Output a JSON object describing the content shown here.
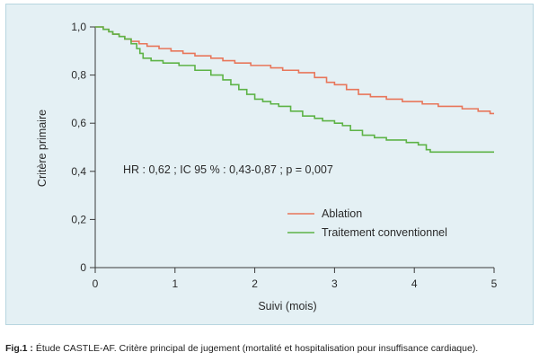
{
  "chart_data": {
    "type": "line",
    "ylabel": "Critère primaire",
    "xlabel": "Suivi (mois)",
    "xlim": [
      0,
      5
    ],
    "ylim": [
      0,
      1
    ],
    "x_ticks": [
      0,
      1,
      2,
      3,
      4,
      5
    ],
    "x_tick_labels": [
      "0",
      "1",
      "2",
      "3",
      "4",
      "5"
    ],
    "y_ticks": [
      0,
      0.2,
      0.4,
      0.6,
      0.8,
      1.0
    ],
    "y_tick_labels": [
      "0",
      "0,2",
      "0,4",
      "0,6",
      "0,8",
      "1,0"
    ],
    "annotation": "HR : 0,62 ; IC 95 % : 0,43-0,87 ; p = 0,007",
    "legend_position": "center-right",
    "grid": false,
    "series": [
      {
        "name": "Ablation",
        "color": "#e8765a",
        "x": [
          0,
          0.1,
          0.17,
          0.22,
          0.3,
          0.37,
          0.45,
          0.55,
          0.65,
          0.8,
          0.95,
          1.1,
          1.25,
          1.45,
          1.6,
          1.75,
          1.95,
          2.2,
          2.35,
          2.55,
          2.75,
          2.9,
          3.0,
          3.15,
          3.3,
          3.45,
          3.65,
          3.85,
          4.1,
          4.3,
          4.6,
          4.8,
          4.95,
          5.0
        ],
        "y": [
          1.0,
          0.99,
          0.98,
          0.97,
          0.96,
          0.95,
          0.94,
          0.93,
          0.92,
          0.91,
          0.9,
          0.89,
          0.88,
          0.87,
          0.86,
          0.85,
          0.84,
          0.83,
          0.82,
          0.81,
          0.79,
          0.77,
          0.76,
          0.74,
          0.72,
          0.71,
          0.7,
          0.69,
          0.68,
          0.67,
          0.66,
          0.65,
          0.64,
          0.64
        ]
      },
      {
        "name": "Traitement conventionnel",
        "color": "#5db346",
        "x": [
          0,
          0.1,
          0.17,
          0.22,
          0.3,
          0.37,
          0.45,
          0.52,
          0.56,
          0.6,
          0.7,
          0.85,
          1.05,
          1.25,
          1.45,
          1.6,
          1.7,
          1.8,
          1.9,
          2.0,
          2.1,
          2.2,
          2.3,
          2.45,
          2.6,
          2.75,
          2.85,
          3.0,
          3.1,
          3.2,
          3.35,
          3.5,
          3.65,
          3.9,
          4.05,
          4.15,
          4.2,
          4.4,
          4.7,
          5.0
        ],
        "y": [
          1.0,
          0.99,
          0.98,
          0.97,
          0.96,
          0.95,
          0.93,
          0.91,
          0.89,
          0.87,
          0.86,
          0.85,
          0.84,
          0.82,
          0.8,
          0.78,
          0.76,
          0.74,
          0.72,
          0.7,
          0.69,
          0.68,
          0.67,
          0.65,
          0.63,
          0.62,
          0.61,
          0.6,
          0.59,
          0.57,
          0.55,
          0.54,
          0.53,
          0.52,
          0.51,
          0.49,
          0.48,
          0.48,
          0.48,
          0.48
        ]
      }
    ]
  },
  "caption": {
    "bold": "Fig.1 :",
    "text": " Étude CASTLE-AF. Critère principal de jugement (mortalité et hospitalisation pour insuffisance cardiaque)."
  }
}
